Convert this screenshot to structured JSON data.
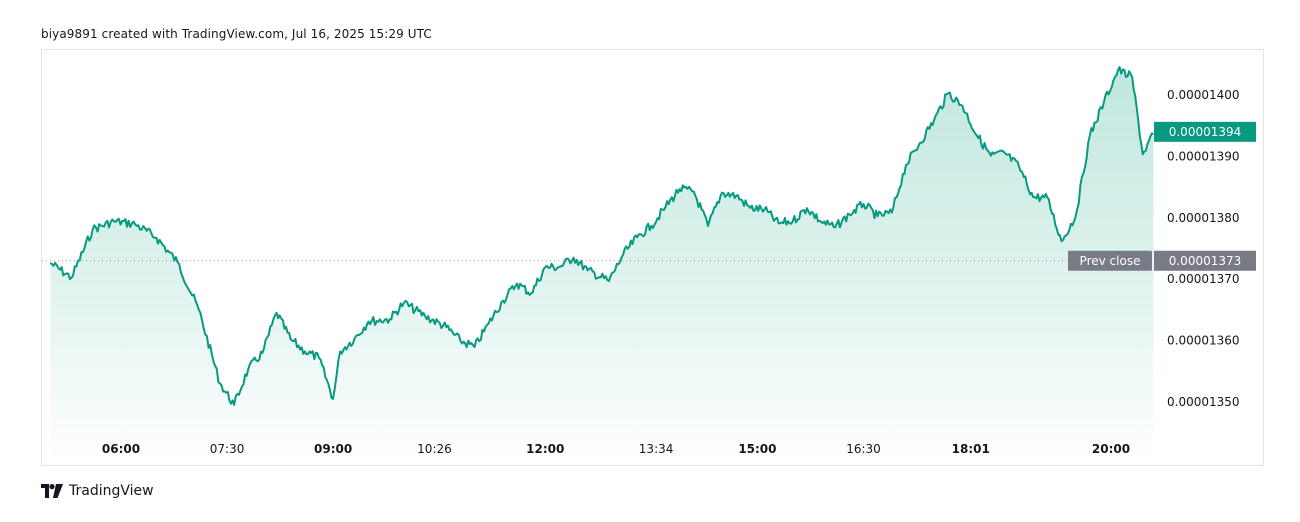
{
  "header": {
    "text": "biya9891 created with TradingView.com, Jul 16, 2025 15:29 UTC"
  },
  "footer": {
    "logo_icon": "tradingview-logo-icon",
    "brand": "TradingView"
  },
  "colors": {
    "line": "#089981",
    "fill_top": "#b9e4da",
    "fill_bottom": "#ffffff",
    "last_badge": "#089981",
    "prev_badge": "#787b86",
    "prev_line": "#9598a1"
  },
  "chart_data": {
    "type": "area",
    "ylim": [
      1.346e-05,
      1.407e-05
    ],
    "y_ticks": [
      "0.00001400",
      "0.00001390",
      "0.00001380",
      "0.00001370",
      "0.00001360",
      "0.00001350"
    ],
    "y_tick_values": [
      1.4e-05,
      1.39e-05,
      1.38e-05,
      1.37e-05,
      1.36e-05,
      1.35e-05
    ],
    "x_ticks": [
      {
        "label": "06:00",
        "hour": 6.0,
        "bold": true
      },
      {
        "label": "07:30",
        "hour": 7.5,
        "bold": false
      },
      {
        "label": "09:00",
        "hour": 9.0,
        "bold": true
      },
      {
        "label": "10:26",
        "hour": 10.433,
        "bold": false
      },
      {
        "label": "12:00",
        "hour": 12.0,
        "bold": true
      },
      {
        "label": "13:34",
        "hour": 13.567,
        "bold": false
      },
      {
        "label": "15:00",
        "hour": 15.0,
        "bold": true
      },
      {
        "label": "16:30",
        "hour": 16.5,
        "bold": false
      },
      {
        "label": "18:01",
        "hour": 18.017,
        "bold": true
      },
      {
        "label": "20:00",
        "hour": 20.0,
        "bold": true
      }
    ],
    "last_price": {
      "label": "0.00001394",
      "value": 1.394e-05
    },
    "prev_close": {
      "label": "Prev close",
      "value_label": "0.00001373",
      "value": 1.373e-05
    },
    "x": [
      5.0,
      5.3,
      5.6,
      5.9,
      6.2,
      6.5,
      6.8,
      7.1,
      7.4,
      7.6,
      7.8,
      8.0,
      8.2,
      8.4,
      8.6,
      8.8,
      9.0,
      9.1,
      9.3,
      9.5,
      9.8,
      10.0,
      10.3,
      10.6,
      10.8,
      11.0,
      11.2,
      11.4,
      11.6,
      11.8,
      12.0,
      12.2,
      12.4,
      12.6,
      12.9,
      13.1,
      13.3,
      13.5,
      13.7,
      13.9,
      14.1,
      14.3,
      14.5,
      14.7,
      14.9,
      15.1,
      15.3,
      15.5,
      15.7,
      15.9,
      16.1,
      16.3,
      16.5,
      16.7,
      16.9,
      17.1,
      17.3,
      17.5,
      17.7,
      17.9,
      18.1,
      18.3,
      18.5,
      18.7,
      18.9,
      19.1,
      19.3,
      19.5,
      19.7,
      19.9,
      20.1,
      20.3,
      20.45,
      20.6
    ],
    "y": [
      1.37264e-05,
      1.37025e-05,
      1.37812e-05,
      1.37944e-05,
      1.37898e-05,
      1.37678e-05,
      1.37275e-05,
      1.36503e-05,
      1.35302e-05,
      1.34953e-05,
      1.35539e-05,
      1.35798e-05,
      1.36454e-05,
      1.36019e-05,
      1.35824e-05,
      1.35719e-05,
      1.3505e-05,
      1.35824e-05,
      1.36027e-05,
      1.36311e-05,
      1.36349e-05,
      1.36615e-05,
      1.36398e-05,
      1.3622e-05,
      1.35998e-05,
      1.35896e-05,
      1.36279e-05,
      1.3665e-05,
      1.3693e-05,
      1.36769e-05,
      1.37193e-05,
      1.37198e-05,
      1.37353e-05,
      1.37145e-05,
      1.36971e-05,
      1.37398e-05,
      1.37684e-05,
      1.3787e-05,
      1.38176e-05,
      1.38468e-05,
      1.38426e-05,
      1.37867e-05,
      1.38411e-05,
      1.38357e-05,
      1.38159e-05,
      1.38136e-05,
      1.37908e-05,
      1.37947e-05,
      1.38156e-05,
      1.37937e-05,
      1.37844e-05,
      1.38054e-05,
      1.38226e-05,
      1.38024e-05,
      1.38084e-05,
      1.38857e-05,
      1.39223e-05,
      1.39596e-05,
      1.40033e-05,
      1.39822e-05,
      1.39349e-05,
      1.39011e-05,
      1.39054e-05,
      1.3883e-05,
      1.38338e-05,
      1.38325e-05,
      1.37619e-05,
      1.38021e-05,
      1.39336e-05,
      1.39883e-05,
      1.40408e-05,
      1.40287e-05,
      1.39035e-05,
      1.39366e-05
    ]
  }
}
